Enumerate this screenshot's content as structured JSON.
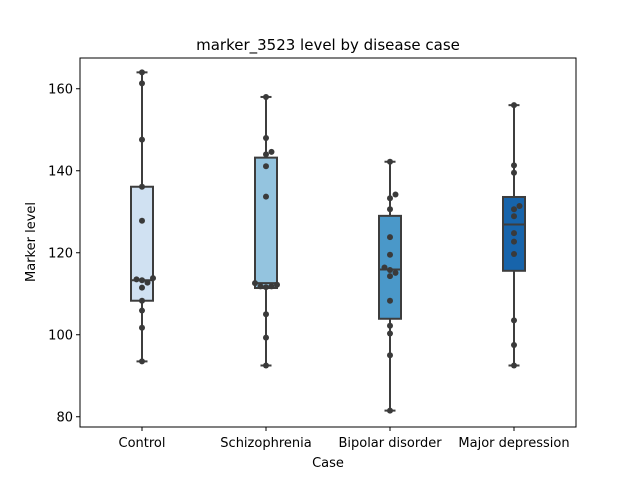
{
  "chart_data": {
    "type": "box",
    "title": "marker_3523 level by disease case",
    "xlabel": "Case",
    "ylabel": "Marker level",
    "ylim": [
      77.5,
      167.5
    ],
    "yticks": [
      80,
      100,
      120,
      140,
      160
    ],
    "categories": [
      "Control",
      "Schizophrenia",
      "Bipolar disorder",
      "Major depression"
    ],
    "box_colors": [
      "#d0e1f2",
      "#94c4df",
      "#4a98c9",
      "#1764ab"
    ],
    "boxes": [
      {
        "whisker_low": 93.5,
        "q1": 108.3,
        "median": 113.3,
        "q3": 136.1,
        "whisker_high": 164.0
      },
      {
        "whisker_low": 92.5,
        "q1": 111.4,
        "median": 112.6,
        "q3": 143.2,
        "whisker_high": 158.0
      },
      {
        "whisker_low": 81.5,
        "q1": 103.9,
        "median": 115.9,
        "q3": 129.0,
        "whisker_high": 142.2
      },
      {
        "whisker_low": 92.5,
        "q1": 115.6,
        "median": 126.9,
        "q3": 133.6,
        "whisker_high": 156.0
      }
    ],
    "points": [
      [
        164.0,
        161.3,
        147.6,
        136.1,
        127.8,
        113.5,
        113.3,
        112.7,
        111.5,
        108.3,
        105.9,
        101.7,
        93.5,
        113.8
      ],
      [
        158.0,
        148.0,
        144.6,
        144.0,
        141.1,
        133.7,
        112.6,
        112.2,
        111.8,
        111.6,
        111.8,
        105.0,
        99.3,
        92.5
      ],
      [
        142.2,
        134.2,
        133.3,
        130.6,
        123.8,
        119.5,
        116.4,
        115.8,
        115.1,
        114.3,
        108.3,
        102.2,
        100.3,
        95.0,
        81.5
      ],
      [
        156.0,
        141.3,
        139.5,
        131.4,
        130.6,
        128.9,
        124.8,
        122.7,
        119.7,
        103.5,
        97.5,
        92.5
      ]
    ]
  }
}
